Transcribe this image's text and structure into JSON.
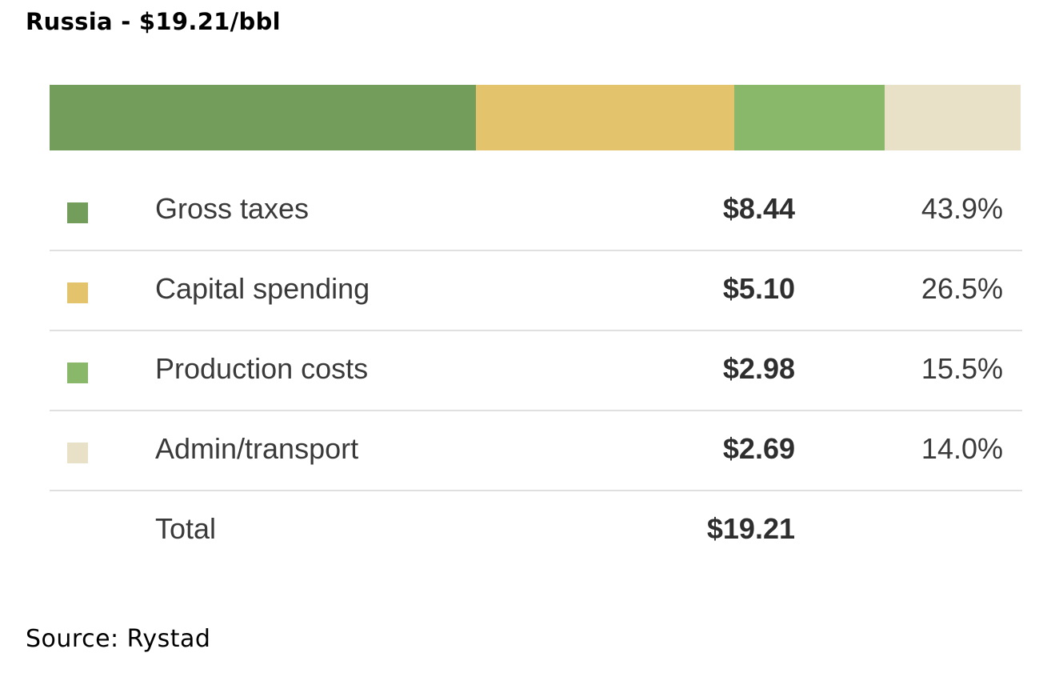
{
  "title": "Russia - $19.21/bbl",
  "source": "Source: Rystad",
  "chart_data": {
    "type": "bar",
    "orientation": "horizontal-stacked",
    "title": "Russia - $19.21/bbl",
    "unit": "$/bbl",
    "categories": [
      "Gross taxes",
      "Capital spending",
      "Production costs",
      "Admin/transport"
    ],
    "values": [
      8.44,
      5.1,
      2.98,
      2.69
    ],
    "value_labels": [
      "$8.44",
      "$5.10",
      "$2.98",
      "$2.69"
    ],
    "percent_labels": [
      "43.9%",
      "26.5%",
      "15.5%",
      "14.0%"
    ],
    "percents": [
      43.9,
      26.5,
      15.5,
      14.0
    ],
    "colors": [
      "#739d5a",
      "#e3c46c",
      "#8ab86b",
      "#e8e1c8"
    ],
    "total_label": "Total",
    "total_value_label": "$19.21",
    "total": 19.21
  }
}
